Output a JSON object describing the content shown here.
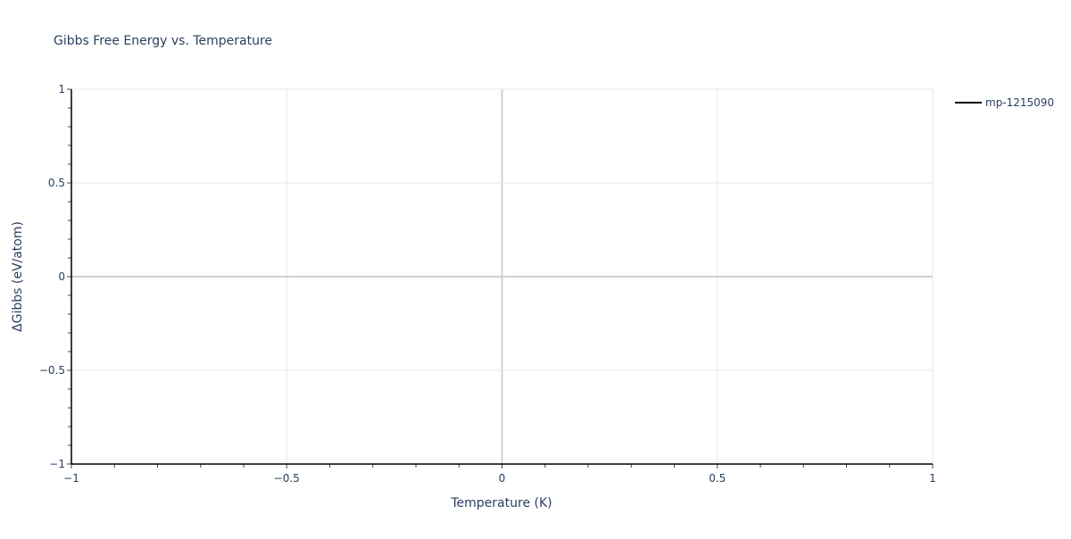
{
  "chart_data": {
    "type": "line",
    "title": "Gibbs Free Energy vs. Temperature",
    "xlabel": "Temperature (K)",
    "ylabel": "ΔGibbs (eV/atom)",
    "xlim": [
      -1,
      1
    ],
    "ylim": [
      -1,
      1
    ],
    "xticks": [
      -1,
      -0.5,
      0,
      0.5,
      1
    ],
    "yticks": [
      -1,
      -0.5,
      0,
      0.5,
      1
    ],
    "xtick_labels": [
      "−1",
      "−0.5",
      "0",
      "0.5",
      "1"
    ],
    "ytick_labels": [
      "−1",
      "−0.5",
      "0",
      "0.5",
      "1"
    ],
    "grid": true,
    "legend_position": "top-right outside",
    "series": [
      {
        "name": "mp-1215090",
        "color": "#000000",
        "x": [],
        "y": []
      }
    ]
  }
}
